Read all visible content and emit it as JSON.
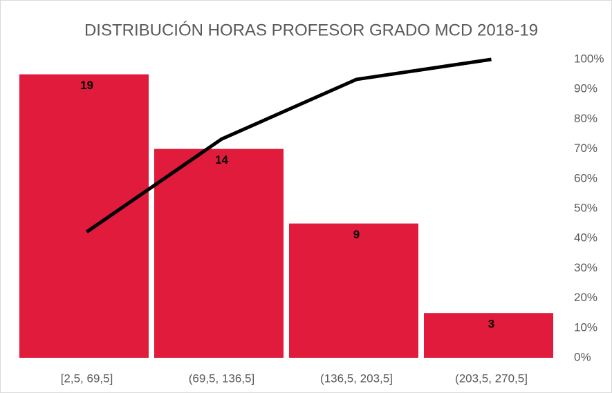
{
  "chart_data": {
    "type": "bar",
    "title": "DISTRIBUCIÓN HORAS PROFESOR GRADO MCD 2018-19",
    "categories": [
      "[2,5, 69,5]",
      "(69,5, 136,5]",
      "(136,5, 203,5]",
      "(203,5, 270,5]"
    ],
    "series": [
      {
        "type": "bar",
        "color": "#e01b3c",
        "values": [
          19,
          14,
          9,
          3
        ]
      },
      {
        "type": "line",
        "axis": "y2",
        "color": "#000000",
        "values": [
          42.2,
          73.3,
          93.3,
          100
        ]
      }
    ],
    "ylim": [
      0,
      20
    ],
    "y2lim": [
      0,
      100
    ],
    "y2ticks": [
      {
        "value": 0,
        "label": "0%"
      },
      {
        "value": 10,
        "label": "10%"
      },
      {
        "value": 20,
        "label": "20%"
      },
      {
        "value": 30,
        "label": "30%"
      },
      {
        "value": 40,
        "label": "40%"
      },
      {
        "value": 50,
        "label": "50%"
      },
      {
        "value": 60,
        "label": "60%"
      },
      {
        "value": 70,
        "label": "70%"
      },
      {
        "value": 80,
        "label": "80%"
      },
      {
        "value": 90,
        "label": "90%"
      },
      {
        "value": 100,
        "label": "100%"
      }
    ],
    "grid": false
  }
}
